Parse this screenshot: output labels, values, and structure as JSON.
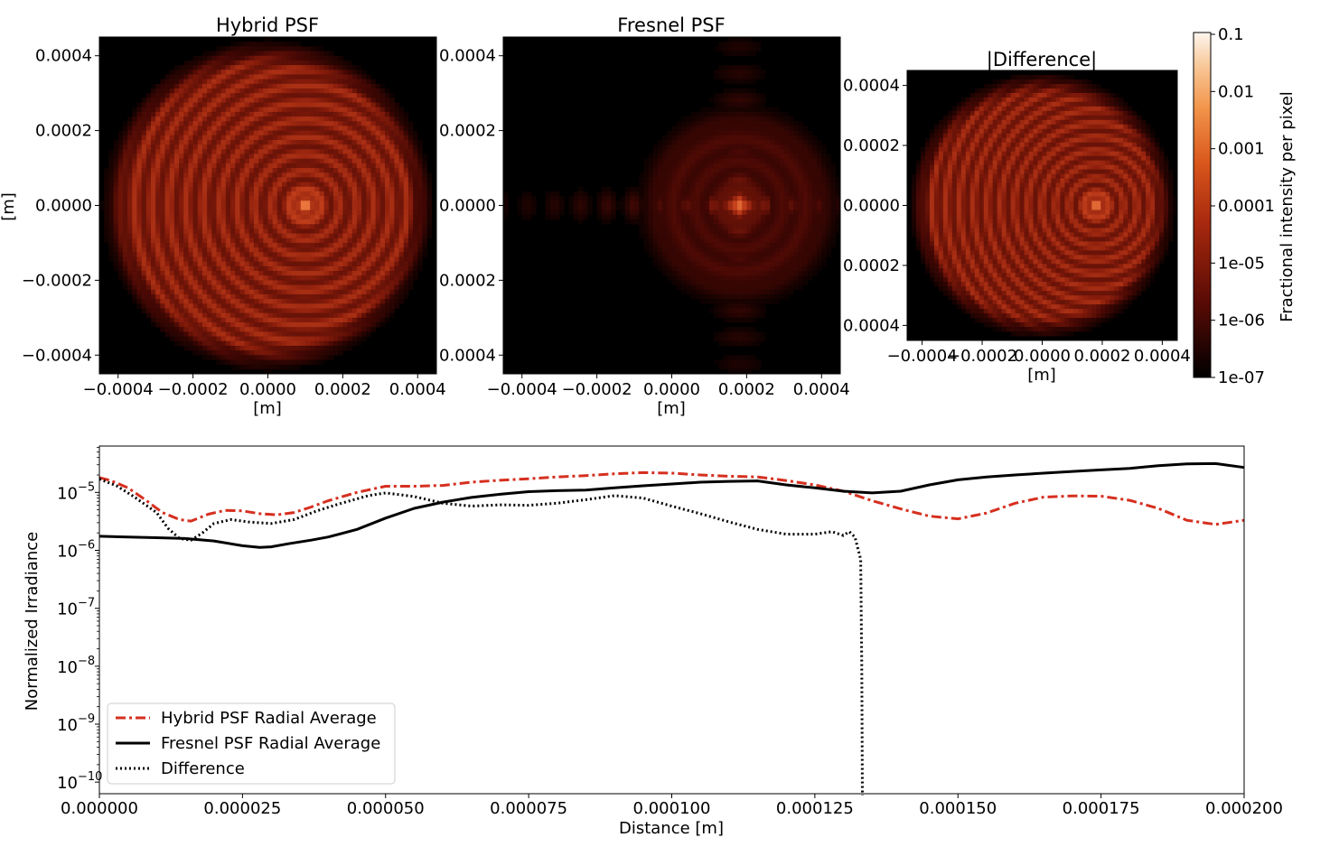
{
  "chart_data": [
    {
      "type": "heatmap",
      "id": "hybrid",
      "title": "Hybrid PSF",
      "xlabel": "[m]",
      "ylabel": "[m]",
      "xlim": [
        -0.00045,
        0.00045
      ],
      "ylim": [
        -0.00045,
        0.00045
      ],
      "xticks": [
        "−0.0004",
        "−0.0002",
        "0.0000",
        "0.0002",
        "0.0004"
      ],
      "yticks": [
        "0.0004",
        "0.0002",
        "0.0000",
        "−0.0002",
        "−0.0004"
      ],
      "tick_values": [
        -0.0004,
        -0.0002,
        0,
        0.0002,
        0.0004
      ],
      "pattern": "rings",
      "center": [
        0.0001,
        0.0
      ],
      "colormap": "gist_heat",
      "colorscale": "log"
    },
    {
      "type": "heatmap",
      "id": "fresnel",
      "title": "Fresnel PSF",
      "xlabel": "[m]",
      "ylabel": "",
      "xlim": [
        -0.00045,
        0.00045
      ],
      "ylim": [
        -0.00045,
        0.00045
      ],
      "xticks": [
        "−0.0004",
        "−0.0002",
        "0.0000",
        "0.0002",
        "0.0004"
      ],
      "yticks": [
        "0.0004",
        "0.0002",
        "0.0000",
        "0.0002",
        "0.0004"
      ],
      "tick_values": [
        -0.0004,
        -0.0002,
        0,
        0.0002,
        0.0004
      ],
      "pattern": "cross",
      "center": [
        0.00018,
        0.0
      ],
      "colormap": "gist_heat",
      "colorscale": "log"
    },
    {
      "type": "heatmap",
      "id": "difference",
      "title": "|Difference|",
      "xlabel": "[m]",
      "ylabel": "",
      "xlim": [
        -0.00045,
        0.00045
      ],
      "ylim": [
        -0.00045,
        0.00045
      ],
      "xticks": [
        "−0.0004",
        "−0.0002",
        "0.0000",
        "0.0002",
        "0.0004"
      ],
      "yticks": [
        "0.0004",
        "0.0002",
        "0.0000",
        "0.0002",
        "0.0004"
      ],
      "tick_values": [
        -0.0004,
        -0.0002,
        0,
        0.0002,
        0.0004
      ],
      "pattern": "rings",
      "center": [
        0.00018,
        0.0
      ],
      "colormap": "gist_heat",
      "colorscale": "log"
    },
    {
      "type": "colorbar",
      "id": "colorbar",
      "label": "Fractional intensity per pixel",
      "ticks": [
        "0.1",
        "0.01",
        "0.001",
        "0.0001",
        "1e-05",
        "1e-06",
        "1e-07"
      ],
      "range": [
        1e-07,
        0.1
      ],
      "colormap": "gist_heat",
      "scale": "log"
    },
    {
      "type": "line",
      "id": "radial",
      "title": "",
      "xlabel": "Distance [m]",
      "ylabel": "Normalized Irradiance",
      "xlim": [
        0,
        0.0002
      ],
      "ylim_log10": [
        -10.2,
        -4.2
      ],
      "yscale": "log",
      "xticks": [
        "0.000000",
        "0.000025",
        "0.000050",
        "0.000075",
        "0.000100",
        "0.000125",
        "0.000150",
        "0.000175",
        "0.000200"
      ],
      "xtick_values": [
        0,
        2.5e-05,
        5e-05,
        7.5e-05,
        0.0001,
        0.000125,
        0.00015,
        0.000175,
        0.0002
      ],
      "ytick_exponents": [
        "−5",
        "−6",
        "−7",
        "−8",
        "−9",
        "−10"
      ],
      "ytick_values_log10": [
        -5,
        -6,
        -7,
        -8,
        -9,
        -10
      ],
      "ytick_base": "10",
      "legend_position": "lower-left",
      "series": [
        {
          "name": "Hybrid PSF Radial Average",
          "color": "#d62f1f",
          "style": "dashdot",
          "x": [
            0,
            2e-06,
            5e-06,
            8e-06,
            1.1e-05,
            1.4e-05,
            1.6e-05,
            1.9e-05,
            2.2e-05,
            2.5e-05,
            2.8e-05,
            3.1e-05,
            3.4e-05,
            3.7e-05,
            4e-05,
            4.5e-05,
            5e-05,
            5.5e-05,
            6e-05,
            6.5e-05,
            7e-05,
            7.5e-05,
            8e-05,
            8.5e-05,
            9e-05,
            9.5e-05,
            0.0001,
            0.000105,
            0.00011,
            0.000115,
            0.00012,
            0.000125,
            0.00013,
            0.000135,
            0.00014,
            0.000145,
            0.00015,
            0.000155,
            0.00016,
            0.000165,
            0.00017,
            0.000175,
            0.00018,
            0.000185,
            0.00019,
            0.000195,
            0.0002
          ],
          "y": [
            1.8e-05,
            1.6e-05,
            1.2e-05,
            7.5e-06,
            4.5e-06,
            3.4e-06,
            3.2e-06,
            4.2e-06,
            4.9e-06,
            4.8e-06,
            4.3e-06,
            4.1e-06,
            4.5e-06,
            5.6e-06,
            7.2e-06,
            1e-05,
            1.28e-05,
            1.28e-05,
            1.32e-05,
            1.5e-05,
            1.62e-05,
            1.72e-05,
            1.85e-05,
            1.95e-05,
            2.1e-05,
            2.2e-05,
            2.15e-05,
            2e-05,
            1.9e-05,
            1.85e-05,
            1.6e-05,
            1.35e-05,
            1.05e-05,
            7.2e-06,
            5.2e-06,
            3.9e-06,
            3.5e-06,
            4.4e-06,
            6.5e-06,
            8.3e-06,
            8.7e-06,
            8.6e-06,
            7.3e-06,
            5.3e-06,
            3.3e-06,
            2.8e-06,
            3.3e-06
          ]
        },
        {
          "name": "Fresnel PSF Radial Average",
          "color": "#000000",
          "style": "solid",
          "x": [
            0,
            5e-06,
            1e-05,
            1.5e-05,
            2e-05,
            2.5e-05,
            2.8e-05,
            3e-05,
            3.3e-05,
            3.7e-05,
            4e-05,
            4.5e-05,
            5e-05,
            5.5e-05,
            6e-05,
            6.5e-05,
            7e-05,
            7.5e-05,
            8e-05,
            8.5e-05,
            9e-05,
            9.5e-05,
            0.0001,
            0.000105,
            0.00011,
            0.000115,
            0.00012,
            0.000125,
            0.00013,
            0.000135,
            0.00014,
            0.000145,
            0.00015,
            0.000155,
            0.00016,
            0.000165,
            0.00017,
            0.000175,
            0.00018,
            0.000185,
            0.00019,
            0.000195,
            0.0002
          ],
          "y": [
            1.75e-06,
            1.7e-06,
            1.65e-06,
            1.6e-06,
            1.45e-06,
            1.2e-06,
            1.12e-06,
            1.15e-06,
            1.3e-06,
            1.5e-06,
            1.7e-06,
            2.3e-06,
            3.6e-06,
            5.3e-06,
            6.8e-06,
            8.2e-06,
            9.3e-06,
            1.03e-05,
            1.07e-05,
            1.1e-05,
            1.2e-05,
            1.3e-05,
            1.4e-05,
            1.5e-05,
            1.55e-05,
            1.58e-05,
            1.35e-05,
            1.2e-05,
            1.05e-05,
            9.8e-06,
            1.05e-05,
            1.35e-05,
            1.65e-05,
            1.85e-05,
            2e-05,
            2.15e-05,
            2.3e-05,
            2.45e-05,
            2.6e-05,
            2.9e-05,
            3.1e-05,
            3.15e-05,
            2.7e-05
          ]
        },
        {
          "name": "Difference",
          "color": "#000000",
          "style": "dotted",
          "x": [
            0,
            3e-06,
            6e-06,
            1e-05,
            1.2e-05,
            1.4e-05,
            1.6e-05,
            1.8e-05,
            2e-05,
            2.3e-05,
            2.6e-05,
            3e-05,
            3.4e-05,
            3.8e-05,
            4.2e-05,
            4.7e-05,
            5e-05,
            5.5e-05,
            6e-05,
            6.5e-05,
            7e-05,
            7.5e-05,
            8e-05,
            8.5e-05,
            9e-05,
            9.5e-05,
            0.0001,
            0.000105,
            0.00011,
            0.000115,
            0.00012,
            0.000125,
            0.000128,
            0.00013,
            0.000131,
            0.000132,
            0.000133,
            0.0001332,
            0.0001333
          ],
          "y": [
            1.7e-05,
            1.3e-05,
            8.5e-06,
            4.5e-06,
            2.4e-06,
            1.6e-06,
            1.5e-06,
            2e-06,
            2.9e-06,
            3.4e-06,
            3.1e-06,
            2.9e-06,
            3.4e-06,
            4.8e-06,
            6.4e-06,
            8.8e-06,
            9.8e-06,
            8.5e-06,
            6.5e-06,
            5.8e-06,
            6.1e-06,
            6e-06,
            6.5e-06,
            7.5e-06,
            8.8e-06,
            8e-06,
            5.8e-06,
            4.3e-06,
            3.1e-06,
            2.3e-06,
            1.9e-06,
            1.9e-06,
            2.1e-06,
            1.8e-06,
            2.1e-06,
            1.7e-06,
            7e-07,
            1e-08,
            1e-11
          ]
        }
      ]
    }
  ]
}
